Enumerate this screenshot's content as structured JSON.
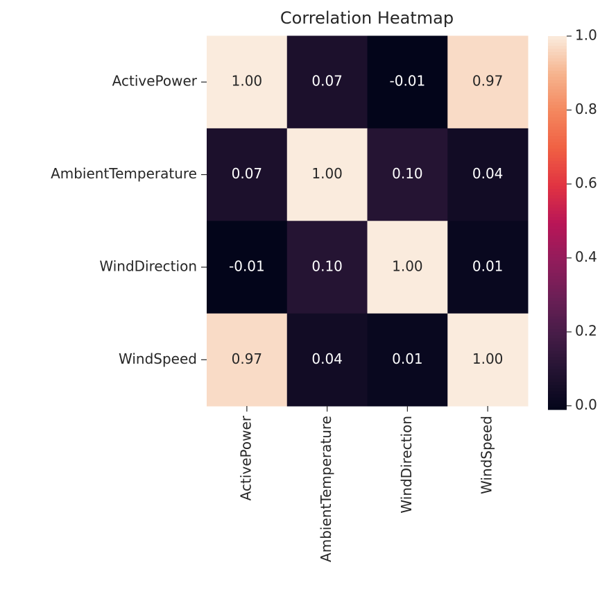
{
  "chart_data": {
    "type": "heatmap",
    "title": "Correlation Heatmap",
    "categories": [
      "ActivePower",
      "AmbientTemperature",
      "WindDirection",
      "WindSpeed"
    ],
    "values": [
      [
        1.0,
        0.07,
        -0.01,
        0.97
      ],
      [
        0.07,
        1.0,
        0.1,
        0.04
      ],
      [
        -0.01,
        0.1,
        1.0,
        0.01
      ],
      [
        0.97,
        0.04,
        0.01,
        1.0
      ]
    ],
    "value_labels": [
      [
        "1.00",
        "0.07",
        "-0.01",
        "0.97"
      ],
      [
        "0.07",
        "1.00",
        "0.10",
        "0.04"
      ],
      [
        "-0.01",
        "0.10",
        "1.00",
        "0.01"
      ],
      [
        "0.97",
        "0.04",
        "0.01",
        "1.00"
      ]
    ],
    "clim": [
      -0.01,
      1.0
    ],
    "cticks": [
      {
        "value": 0,
        "label": "0.0"
      },
      0.2,
      0.4,
      0.6,
      0.8,
      {
        "value": 1,
        "label": "1.0"
      }
    ],
    "colormap": [
      "#03051a",
      "#221331",
      "#451c47",
      "#6b1f56",
      "#921c5b",
      "#b91657",
      "#e13342",
      "#f06043",
      "#f4875e",
      "#f6b48e",
      "#faebdd"
    ]
  }
}
